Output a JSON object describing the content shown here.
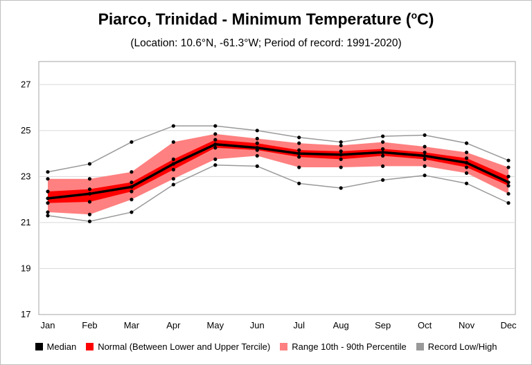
{
  "chart_data": {
    "type": "line",
    "title": "Piarco, Trinidad - Minimum Temperature (",
    "title_unit_sup": "o",
    "title_unit_end": "C)",
    "subtitle": "(Location: 10.6°N, -61.3°W; Period of record: 1991-2020)",
    "categories": [
      "Jan",
      "Feb",
      "Mar",
      "Apr",
      "May",
      "Jun",
      "Jul",
      "Aug",
      "Sep",
      "Oct",
      "Nov",
      "Dec"
    ],
    "ylim": [
      17,
      28
    ],
    "yticks": [
      17,
      19,
      21,
      23,
      25,
      27
    ],
    "grid": true,
    "legend_placement": "bottom",
    "series": [
      {
        "name": "Median",
        "color": "#000000",
        "values": [
          22.05,
          22.25,
          22.55,
          23.55,
          24.4,
          24.25,
          24.0,
          23.95,
          24.05,
          23.9,
          23.6,
          22.75
        ]
      },
      {
        "name": "Normal (Between Lower and Upper Tercile)",
        "color": "#ff0000",
        "lower": [
          21.85,
          21.9,
          22.35,
          23.3,
          24.25,
          24.15,
          23.85,
          23.75,
          23.9,
          23.75,
          23.4,
          22.6
        ],
        "upper": [
          22.35,
          22.45,
          22.75,
          23.75,
          24.6,
          24.45,
          24.15,
          24.1,
          24.2,
          24.05,
          23.8,
          23.0
        ]
      },
      {
        "name": "Range 10th - 90th Percentile",
        "color": "#ff8080",
        "lower": [
          21.45,
          21.35,
          22.0,
          22.9,
          23.75,
          23.9,
          23.4,
          23.4,
          23.45,
          23.45,
          23.15,
          22.25
        ],
        "upper": [
          22.9,
          22.9,
          23.2,
          24.5,
          24.85,
          24.65,
          24.45,
          24.35,
          24.5,
          24.3,
          24.05,
          23.4
        ]
      },
      {
        "name": "Record Low/High",
        "color": "#999999",
        "lower": [
          21.3,
          21.05,
          21.45,
          22.65,
          23.5,
          23.45,
          22.7,
          22.5,
          22.85,
          23.05,
          22.7,
          21.85
        ],
        "upper": [
          23.2,
          23.55,
          24.5,
          25.2,
          25.2,
          25.0,
          24.7,
          24.5,
          24.75,
          24.8,
          24.45,
          23.7
        ]
      }
    ]
  }
}
